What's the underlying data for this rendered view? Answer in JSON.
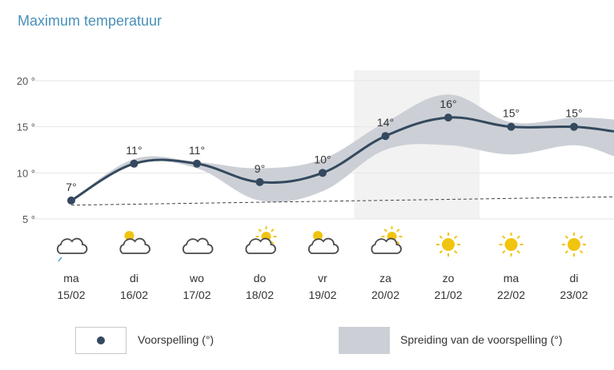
{
  "chart_data": {
    "type": "line",
    "title": "Maximum temperatuur",
    "ylim": [
      5,
      20
    ],
    "y_ticks": [
      5,
      10,
      15,
      20
    ],
    "y_tick_labels": [
      "5 °",
      "10 °",
      "15 °",
      "20 °"
    ],
    "grid": "horizontal",
    "days": [
      "ma",
      "di",
      "wo",
      "do",
      "vr",
      "za",
      "zo",
      "ma",
      "di"
    ],
    "dates": [
      "15/02",
      "16/02",
      "17/02",
      "18/02",
      "19/02",
      "20/02",
      "21/02",
      "22/02",
      "23/02"
    ],
    "icons": [
      "cloudy-drizzle",
      "partly-cloudy",
      "cloudy",
      "partly-sunny",
      "partly-cloudy",
      "partly-sunny",
      "sunny",
      "sunny",
      "sunny"
    ],
    "series": [
      {
        "name": "Voorspelling (°)",
        "values": [
          7,
          11,
          11,
          9,
          10,
          14,
          16,
          15,
          15
        ],
        "labels": [
          "7°",
          "11°",
          "11°",
          "9°",
          "10°",
          "14°",
          "16°",
          "15°",
          "15°"
        ]
      }
    ],
    "spread": {
      "name": "Spreiding van de voorspelling (°)",
      "upper": [
        7,
        11.5,
        11.2,
        10.5,
        11.5,
        15.5,
        18.5,
        15.5,
        16
      ],
      "lower": [
        7,
        11,
        10.5,
        7,
        8,
        12.5,
        13,
        12,
        13
      ]
    },
    "baseline": {
      "start": 6.5,
      "end": 7.4
    },
    "highlight_range": [
      5,
      6
    ],
    "colors": {
      "line": "#34495e",
      "spread": "#ccd0d6",
      "highlight": "#f2f2f2",
      "grid": "#e6e6e6",
      "title": "#4a90b8",
      "sun": "#f1c40f"
    }
  },
  "legend": {
    "forecast_label": "Voorspelling (°)",
    "spread_label": "Spreiding van de voorspelling (°)"
  }
}
